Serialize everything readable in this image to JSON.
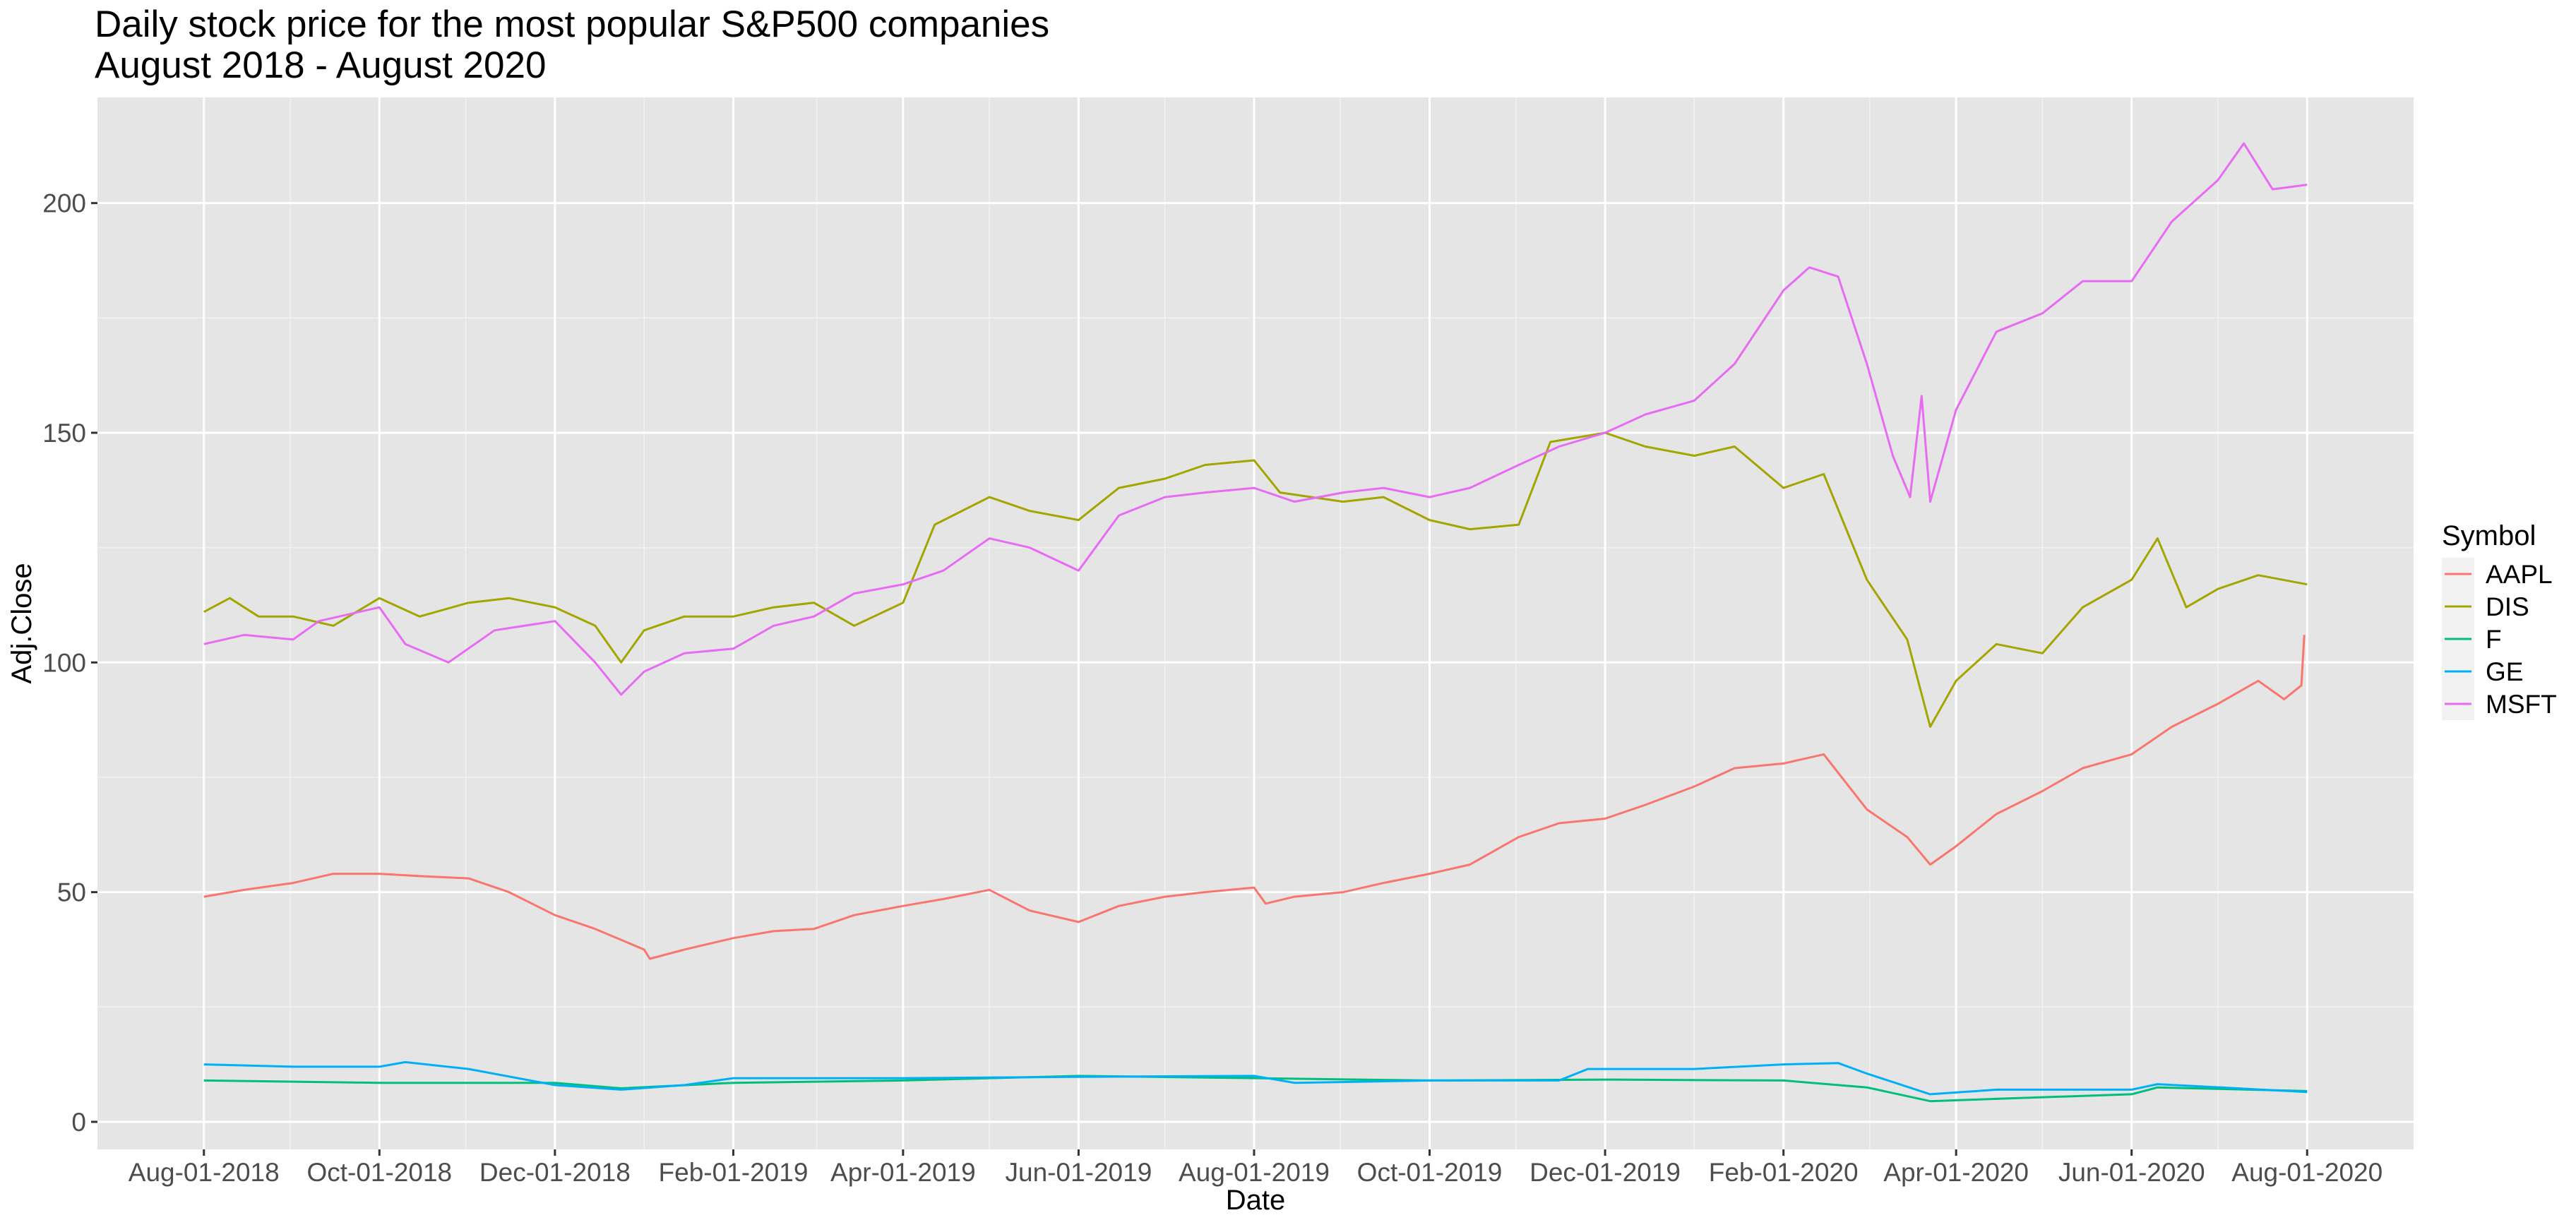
{
  "chart_data": {
    "type": "line",
    "title": "Daily stock price for the most popular S&P500 companies",
    "subtitle": "August 2018 - August 2020",
    "xlabel": "Date",
    "ylabel": "Adj.Close",
    "x_axis": {
      "type": "date",
      "range": [
        "2018-06-25",
        "2020-09-07"
      ],
      "ticks": [
        "2018-08-01",
        "2018-10-01",
        "2018-12-01",
        "2019-02-01",
        "2019-04-01",
        "2019-06-01",
        "2019-08-01",
        "2019-10-01",
        "2019-12-01",
        "2020-02-01",
        "2020-04-01",
        "2020-06-01",
        "2020-08-01"
      ],
      "tick_labels": [
        "Aug-01-2018",
        "Oct-01-2018",
        "Dec-01-2018",
        "Feb-01-2019",
        "Apr-01-2019",
        "Jun-01-2019",
        "Aug-01-2019",
        "Oct-01-2019",
        "Dec-01-2019",
        "Feb-01-2020",
        "Apr-01-2020",
        "Jun-01-2020",
        "Aug-01-2020"
      ]
    },
    "y_axis": {
      "range": [
        -6,
        223
      ],
      "ticks": [
        0,
        50,
        100,
        150,
        200
      ],
      "tick_labels": [
        "0",
        "50",
        "100",
        "150",
        "200"
      ]
    },
    "grid": true,
    "panel_background": "#e5e5e5",
    "legend": {
      "title": "Symbol",
      "position": "right",
      "entries": [
        "AAPL",
        "DIS",
        "F",
        "GE",
        "MSFT"
      ]
    },
    "series": [
      {
        "name": "AAPL",
        "color": "#F8766D",
        "points": [
          [
            "2018-08-01",
            49
          ],
          [
            "2018-08-15",
            50.5
          ],
          [
            "2018-09-01",
            52
          ],
          [
            "2018-09-15",
            54
          ],
          [
            "2018-10-01",
            54
          ],
          [
            "2018-10-15",
            53.5
          ],
          [
            "2018-11-01",
            53
          ],
          [
            "2018-11-15",
            50
          ],
          [
            "2018-12-01",
            45
          ],
          [
            "2018-12-15",
            42
          ],
          [
            "2019-01-01",
            37.5
          ],
          [
            "2019-01-03",
            35.5
          ],
          [
            "2019-01-15",
            37.5
          ],
          [
            "2019-02-01",
            40
          ],
          [
            "2019-02-15",
            41.5
          ],
          [
            "2019-03-01",
            42
          ],
          [
            "2019-03-15",
            45
          ],
          [
            "2019-04-01",
            47
          ],
          [
            "2019-04-15",
            48.5
          ],
          [
            "2019-05-01",
            50.5
          ],
          [
            "2019-05-15",
            46
          ],
          [
            "2019-06-01",
            43.5
          ],
          [
            "2019-06-15",
            47
          ],
          [
            "2019-07-01",
            49
          ],
          [
            "2019-07-15",
            50
          ],
          [
            "2019-08-01",
            51
          ],
          [
            "2019-08-05",
            47.5
          ],
          [
            "2019-08-15",
            49
          ],
          [
            "2019-09-01",
            50
          ],
          [
            "2019-09-15",
            52
          ],
          [
            "2019-10-01",
            54
          ],
          [
            "2019-10-15",
            56
          ],
          [
            "2019-11-01",
            62
          ],
          [
            "2019-11-15",
            65
          ],
          [
            "2019-12-01",
            66
          ],
          [
            "2019-12-15",
            69
          ],
          [
            "2020-01-01",
            73
          ],
          [
            "2020-01-15",
            77
          ],
          [
            "2020-02-01",
            78
          ],
          [
            "2020-02-15",
            80
          ],
          [
            "2020-03-01",
            68
          ],
          [
            "2020-03-15",
            62
          ],
          [
            "2020-03-23",
            56
          ],
          [
            "2020-04-01",
            60
          ],
          [
            "2020-04-15",
            67
          ],
          [
            "2020-05-01",
            72
          ],
          [
            "2020-05-15",
            77
          ],
          [
            "2020-06-01",
            80
          ],
          [
            "2020-06-15",
            86
          ],
          [
            "2020-07-01",
            91
          ],
          [
            "2020-07-15",
            96
          ],
          [
            "2020-07-24",
            92
          ],
          [
            "2020-07-30",
            95
          ],
          [
            "2020-07-31",
            106
          ]
        ]
      },
      {
        "name": "DIS",
        "color": "#A3A500",
        "points": [
          [
            "2018-08-01",
            111
          ],
          [
            "2018-08-10",
            114
          ],
          [
            "2018-08-20",
            110
          ],
          [
            "2018-09-01",
            110
          ],
          [
            "2018-09-15",
            108
          ],
          [
            "2018-10-01",
            114
          ],
          [
            "2018-10-15",
            110
          ],
          [
            "2018-11-01",
            113
          ],
          [
            "2018-11-15",
            114
          ],
          [
            "2018-12-01",
            112
          ],
          [
            "2018-12-15",
            108
          ],
          [
            "2018-12-24",
            100
          ],
          [
            "2019-01-01",
            107
          ],
          [
            "2019-01-15",
            110
          ],
          [
            "2019-02-01",
            110
          ],
          [
            "2019-02-15",
            112
          ],
          [
            "2019-03-01",
            113
          ],
          [
            "2019-03-15",
            108
          ],
          [
            "2019-04-01",
            113
          ],
          [
            "2019-04-12",
            130
          ],
          [
            "2019-05-01",
            136
          ],
          [
            "2019-05-15",
            133
          ],
          [
            "2019-06-01",
            131
          ],
          [
            "2019-06-15",
            138
          ],
          [
            "2019-07-01",
            140
          ],
          [
            "2019-07-15",
            143
          ],
          [
            "2019-08-01",
            144
          ],
          [
            "2019-08-10",
            137
          ],
          [
            "2019-09-01",
            135
          ],
          [
            "2019-09-15",
            136
          ],
          [
            "2019-10-01",
            131
          ],
          [
            "2019-10-15",
            129
          ],
          [
            "2019-11-01",
            130
          ],
          [
            "2019-11-12",
            148
          ],
          [
            "2019-12-01",
            150
          ],
          [
            "2019-12-15",
            147
          ],
          [
            "2020-01-01",
            145
          ],
          [
            "2020-01-15",
            147
          ],
          [
            "2020-02-01",
            138
          ],
          [
            "2020-02-15",
            141
          ],
          [
            "2020-03-01",
            118
          ],
          [
            "2020-03-15",
            105
          ],
          [
            "2020-03-23",
            86
          ],
          [
            "2020-04-01",
            96
          ],
          [
            "2020-04-15",
            104
          ],
          [
            "2020-05-01",
            102
          ],
          [
            "2020-05-15",
            112
          ],
          [
            "2020-06-01",
            118
          ],
          [
            "2020-06-10",
            127
          ],
          [
            "2020-06-20",
            112
          ],
          [
            "2020-07-01",
            116
          ],
          [
            "2020-07-15",
            119
          ],
          [
            "2020-08-01",
            117
          ]
        ]
      },
      {
        "name": "F",
        "color": "#00BF7D",
        "points": [
          [
            "2018-08-01",
            9
          ],
          [
            "2018-10-01",
            8.5
          ],
          [
            "2018-12-01",
            8.5
          ],
          [
            "2018-12-24",
            7.3
          ],
          [
            "2019-02-01",
            8.5
          ],
          [
            "2019-04-01",
            9
          ],
          [
            "2019-06-01",
            10
          ],
          [
            "2019-08-01",
            9.5
          ],
          [
            "2019-10-01",
            9
          ],
          [
            "2019-12-01",
            9.2
          ],
          [
            "2020-02-01",
            9
          ],
          [
            "2020-03-01",
            7.5
          ],
          [
            "2020-03-23",
            4.5
          ],
          [
            "2020-04-15",
            5
          ],
          [
            "2020-06-01",
            6
          ],
          [
            "2020-06-10",
            7.5
          ],
          [
            "2020-08-01",
            6.7
          ]
        ]
      },
      {
        "name": "GE",
        "color": "#00B0F6",
        "points": [
          [
            "2018-08-01",
            12.5
          ],
          [
            "2018-09-01",
            12
          ],
          [
            "2018-10-01",
            12
          ],
          [
            "2018-10-10",
            13
          ],
          [
            "2018-11-01",
            11.5
          ],
          [
            "2018-12-01",
            8
          ],
          [
            "2018-12-24",
            7
          ],
          [
            "2019-01-15",
            8
          ],
          [
            "2019-02-01",
            9.5
          ],
          [
            "2019-04-01",
            9.5
          ],
          [
            "2019-06-01",
            9.8
          ],
          [
            "2019-08-01",
            10
          ],
          [
            "2019-08-15",
            8.5
          ],
          [
            "2019-10-01",
            9
          ],
          [
            "2019-11-15",
            9
          ],
          [
            "2019-11-25",
            11.5
          ],
          [
            "2020-01-01",
            11.5
          ],
          [
            "2020-02-01",
            12.5
          ],
          [
            "2020-02-20",
            12.8
          ],
          [
            "2020-03-01",
            10.5
          ],
          [
            "2020-03-23",
            6
          ],
          [
            "2020-04-15",
            7
          ],
          [
            "2020-06-01",
            7
          ],
          [
            "2020-06-10",
            8.2
          ],
          [
            "2020-08-01",
            6.5
          ]
        ]
      },
      {
        "name": "MSFT",
        "color": "#E76BF3",
        "points": [
          [
            "2018-08-01",
            104
          ],
          [
            "2018-08-15",
            106
          ],
          [
            "2018-09-01",
            105
          ],
          [
            "2018-09-10",
            109
          ],
          [
            "2018-10-01",
            112
          ],
          [
            "2018-10-10",
            104
          ],
          [
            "2018-10-25",
            100
          ],
          [
            "2018-11-10",
            107
          ],
          [
            "2018-12-01",
            109
          ],
          [
            "2018-12-15",
            100
          ],
          [
            "2018-12-24",
            93
          ],
          [
            "2019-01-01",
            98
          ],
          [
            "2019-01-15",
            102
          ],
          [
            "2019-02-01",
            103
          ],
          [
            "2019-02-15",
            108
          ],
          [
            "2019-03-01",
            110
          ],
          [
            "2019-03-15",
            115
          ],
          [
            "2019-04-01",
            117
          ],
          [
            "2019-04-15",
            120
          ],
          [
            "2019-05-01",
            127
          ],
          [
            "2019-05-15",
            125
          ],
          [
            "2019-06-01",
            120
          ],
          [
            "2019-06-15",
            132
          ],
          [
            "2019-07-01",
            136
          ],
          [
            "2019-07-15",
            137
          ],
          [
            "2019-08-01",
            138
          ],
          [
            "2019-08-15",
            135
          ],
          [
            "2019-09-01",
            137
          ],
          [
            "2019-09-15",
            138
          ],
          [
            "2019-10-01",
            136
          ],
          [
            "2019-10-15",
            138
          ],
          [
            "2019-11-01",
            143
          ],
          [
            "2019-11-15",
            147
          ],
          [
            "2019-12-01",
            150
          ],
          [
            "2019-12-15",
            154
          ],
          [
            "2020-01-01",
            157
          ],
          [
            "2020-01-15",
            165
          ],
          [
            "2020-02-01",
            181
          ],
          [
            "2020-02-10",
            186
          ],
          [
            "2020-02-20",
            184
          ],
          [
            "2020-03-01",
            165
          ],
          [
            "2020-03-10",
            145
          ],
          [
            "2020-03-16",
            136
          ],
          [
            "2020-03-20",
            158
          ],
          [
            "2020-03-23",
            135
          ],
          [
            "2020-04-01",
            155
          ],
          [
            "2020-04-15",
            172
          ],
          [
            "2020-05-01",
            176
          ],
          [
            "2020-05-15",
            183
          ],
          [
            "2020-06-01",
            183
          ],
          [
            "2020-06-15",
            196
          ],
          [
            "2020-07-01",
            205
          ],
          [
            "2020-07-10",
            213
          ],
          [
            "2020-07-20",
            203
          ],
          [
            "2020-08-01",
            204
          ]
        ]
      }
    ]
  }
}
